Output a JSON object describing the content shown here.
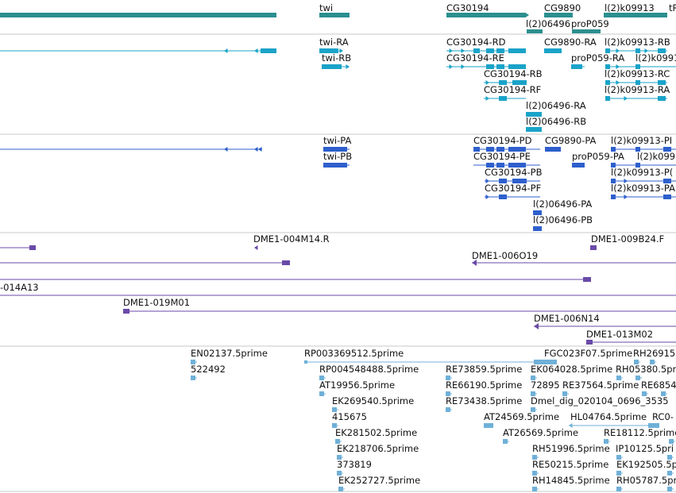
{
  "tracks": {
    "genes": [
      "twi",
      "CG30194",
      "CG9890",
      "l(2)k09913",
      "tR",
      "l(2)06496",
      "proP059"
    ],
    "transcripts": [
      "twi-RA",
      "twi-RB",
      "CG30194-RD",
      "CG30194-RE",
      "CG30194-RB",
      "CG30194-RF",
      "CG9890-RA",
      "proP059-RA",
      "l(2)k09913-RB",
      "l(2)k0991",
      "l(2)k09913-RC",
      "l(2)k09913-RA",
      "l(2)06496-RA",
      "l(2)06496-RB"
    ],
    "proteins": [
      "twi-PA",
      "twi-PB",
      "CG30194-PD",
      "CG30194-PE",
      "CG30194-PB",
      "CG30194-PF",
      "CG9890-PA",
      "proP059-PA",
      "l(2)k09913-PI",
      "l(2)k099",
      "l(2)k09913-P(",
      "l(2)k09913-PA",
      "l(2)06496-PA",
      "l(2)06496-PB"
    ],
    "clones": [
      "DME1-004M14.R",
      "DME1-009B24.F",
      "DME1-006O19",
      "-014A13",
      "DME1-019M01",
      "DME1-006N14",
      "DME1-013M02"
    ],
    "ests": [
      "EN02137.5prime",
      "522492",
      "RP003369512.5prime",
      "RP004548488.5prime",
      "AT19956.5prime",
      "EK269540.5prime",
      "415675",
      "EK281502.5prime",
      "EK218706.5prime",
      "373819",
      "EK252727.5prime",
      "RE73859.5prime",
      "RE66190.5prime",
      "RE73438.5prime",
      "AT24569.5prime",
      "AT26569.5prime",
      "FGC023F07.5prime",
      "RH26915",
      "EK064028.5prime",
      "RH05380.5pri",
      "72895",
      "RE37564.5prime",
      "RE6854",
      "Dmel_dig_020104_0696_3535",
      "HL04764.5prime",
      "RC0-",
      "RE18112.5prime",
      "RH51996.5prime",
      "IP10125.5pri",
      "RE50215.5prime",
      "EK192505.5pri",
      "RH14845.5prime",
      "RH05787.5pri"
    ]
  },
  "colors": {
    "gene": "#2b8f8f",
    "transcript": "#1aa3c8",
    "protein": "#2e5fcc",
    "clone": "#6a4aa8",
    "est": "#6fb0d8",
    "separator": "#c8c8c8"
  }
}
